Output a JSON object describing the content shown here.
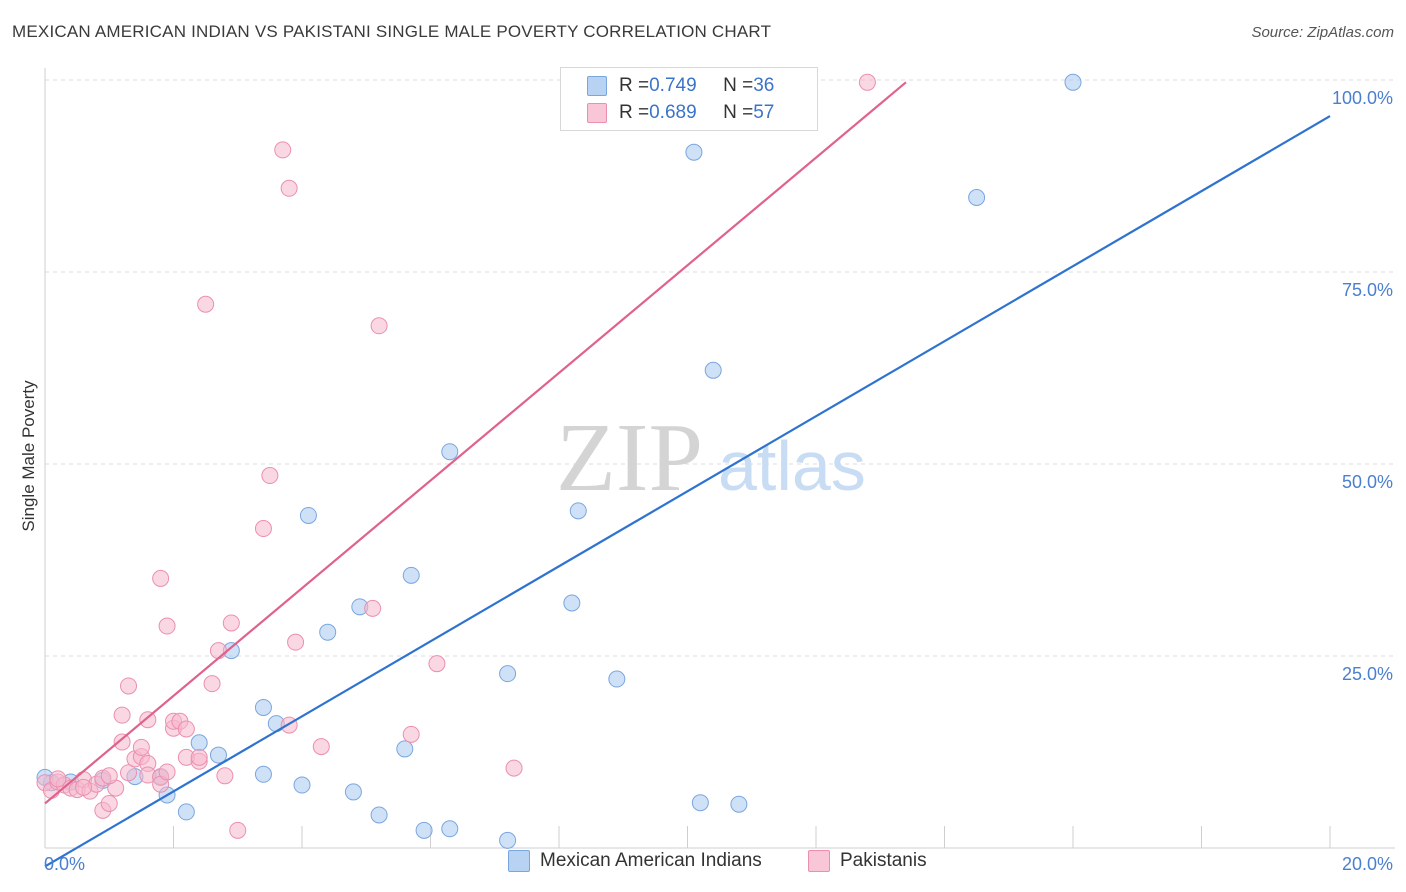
{
  "title": "MEXICAN AMERICAN INDIAN VS PAKISTANI SINGLE MALE POVERTY CORRELATION CHART",
  "source": "Source: ZipAtlas.com",
  "watermark": {
    "zip": "ZIP",
    "atlas": "atlas"
  },
  "legend": {
    "r_label": "R = ",
    "n_label": "N = ",
    "rows": [
      {
        "series": "Mexican American Indians",
        "r": "0.749",
        "n": "36"
      },
      {
        "series": "Pakistanis",
        "r": "0.689",
        "n": "57"
      }
    ]
  },
  "chart_data": {
    "type": "scatter",
    "title": "MEXICAN AMERICAN INDIAN VS PAKISTANI SINGLE MALE POVERTY CORRELATION CHART",
    "xlabel": "",
    "ylabel": "Single Male Poverty",
    "xlim": [
      0,
      20
    ],
    "ylim": [
      0,
      100
    ],
    "x_tick_labels": [
      "0.0%",
      "20.0%"
    ],
    "y_tick_labels": [
      "100.0%",
      "75.0%",
      "50.0%",
      "25.0%"
    ],
    "y_ticks": [
      100,
      75,
      50,
      25
    ],
    "grid": true,
    "legend_position": "top-center",
    "series": [
      {
        "name": "Mexican American Indians",
        "color": "#a8c8f0",
        "stroke": "#7aa6de",
        "line_color": "#2f73d0",
        "trend": {
          "x0": 0,
          "y0": -2.4,
          "x1": 20,
          "y1": 95.3
        },
        "points": [
          [
            0.1,
            8.5
          ],
          [
            0.4,
            8.6
          ],
          [
            0.9,
            8.8
          ],
          [
            1.4,
            9.3
          ],
          [
            1.8,
            9.2
          ],
          [
            1.9,
            6.9
          ],
          [
            2.2,
            4.7
          ],
          [
            2.4,
            13.7
          ],
          [
            2.7,
            12.1
          ],
          [
            3.4,
            9.6
          ],
          [
            3.4,
            18.3
          ],
          [
            3.6,
            16.2
          ],
          [
            2.9,
            25.7
          ],
          [
            4.0,
            8.2
          ],
          [
            4.1,
            43.3
          ],
          [
            4.4,
            28.1
          ],
          [
            4.9,
            31.4
          ],
          [
            4.8,
            7.3
          ],
          [
            5.2,
            4.3
          ],
          [
            5.6,
            12.9
          ],
          [
            5.7,
            35.5
          ],
          [
            5.9,
            2.3
          ],
          [
            6.3,
            2.5
          ],
          [
            6.3,
            51.6
          ],
          [
            7.2,
            22.7
          ],
          [
            7.2,
            1.0
          ],
          [
            8.2,
            31.9
          ],
          [
            8.3,
            43.9
          ],
          [
            8.9,
            22.0
          ],
          [
            10.1,
            90.6
          ],
          [
            10.2,
            5.9
          ],
          [
            10.4,
            62.2
          ],
          [
            10.8,
            5.7
          ],
          [
            14.5,
            84.7
          ],
          [
            16.0,
            99.7
          ],
          [
            0.0,
            9.2
          ]
        ]
      },
      {
        "name": "Pakistanis",
        "color": "#f6b8cc",
        "stroke": "#ec8fae",
        "line_color": "#e0628c",
        "trend": {
          "x0": 0,
          "y0": 5.8,
          "x1": 13.4,
          "y1": 99.7
        },
        "points": [
          [
            0.0,
            8.5
          ],
          [
            0.1,
            7.5
          ],
          [
            0.2,
            8.6
          ],
          [
            0.3,
            8.2
          ],
          [
            0.4,
            7.8
          ],
          [
            0.5,
            7.6
          ],
          [
            0.6,
            8.9
          ],
          [
            0.7,
            7.4
          ],
          [
            0.8,
            8.3
          ],
          [
            0.9,
            9.1
          ],
          [
            0.9,
            4.9
          ],
          [
            1.0,
            5.8
          ],
          [
            1.1,
            7.8
          ],
          [
            1.2,
            17.3
          ],
          [
            1.2,
            13.8
          ],
          [
            1.3,
            21.1
          ],
          [
            1.3,
            9.8
          ],
          [
            1.4,
            11.6
          ],
          [
            1.5,
            11.9
          ],
          [
            1.5,
            13.1
          ],
          [
            1.6,
            11.0
          ],
          [
            1.6,
            9.5
          ],
          [
            1.6,
            16.7
          ],
          [
            1.8,
            9.3
          ],
          [
            1.8,
            8.3
          ],
          [
            1.8,
            35.1
          ],
          [
            1.9,
            9.9
          ],
          [
            1.9,
            28.9
          ],
          [
            2.0,
            15.6
          ],
          [
            2.0,
            16.5
          ],
          [
            2.1,
            16.5
          ],
          [
            2.2,
            11.8
          ],
          [
            2.2,
            15.5
          ],
          [
            2.4,
            11.3
          ],
          [
            2.4,
            11.8
          ],
          [
            2.5,
            70.8
          ],
          [
            2.6,
            21.4
          ],
          [
            2.7,
            25.7
          ],
          [
            2.8,
            9.4
          ],
          [
            2.9,
            29.3
          ],
          [
            3.0,
            2.3
          ],
          [
            3.4,
            41.6
          ],
          [
            3.5,
            48.5
          ],
          [
            3.7,
            90.9
          ],
          [
            3.8,
            85.9
          ],
          [
            3.8,
            16.0
          ],
          [
            3.9,
            26.8
          ],
          [
            4.3,
            13.2
          ],
          [
            5.1,
            31.2
          ],
          [
            5.2,
            68.0
          ],
          [
            5.7,
            14.8
          ],
          [
            6.1,
            24.0
          ],
          [
            7.3,
            10.4
          ],
          [
            12.8,
            99.7
          ],
          [
            0.2,
            9.0
          ],
          [
            0.6,
            7.9
          ],
          [
            1.0,
            9.4
          ]
        ]
      }
    ]
  }
}
